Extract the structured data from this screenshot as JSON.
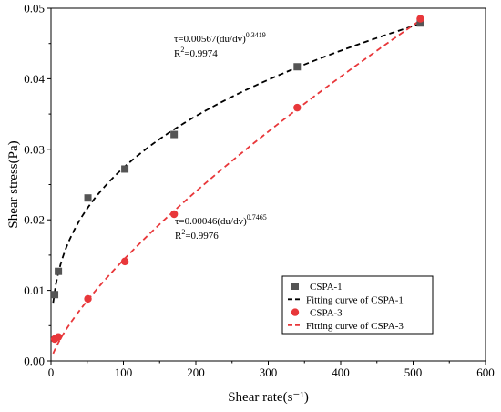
{
  "chart_data": {
    "type": "scatter",
    "title": "",
    "xlabel": "Shear rate(s⁻¹)",
    "ylabel": "Shear stress(Pa)",
    "xlim": [
      0,
      600
    ],
    "ylim": [
      0.0,
      0.05
    ],
    "xticks": [
      0,
      100,
      200,
      300,
      400,
      500,
      600
    ],
    "yticks": [
      0.0,
      0.01,
      0.02,
      0.03,
      0.04,
      0.05
    ],
    "xtick_labels": [
      "0",
      "100",
      "200",
      "300",
      "400",
      "500",
      "600"
    ],
    "ytick_labels": [
      "0.00",
      "0.01",
      "0.02",
      "0.03",
      "0.04",
      "0.05"
    ],
    "grid": false,
    "legend_position": "bottom-right",
    "series": [
      {
        "name": "CSPA-1",
        "kind": "points",
        "marker": "square",
        "color": "#555555",
        "points": [
          [
            5.1,
            0.0094
          ],
          [
            10.2,
            0.0127
          ],
          [
            51,
            0.0231
          ],
          [
            102,
            0.0272
          ],
          [
            170,
            0.0321
          ],
          [
            340,
            0.0417
          ],
          [
            510,
            0.0479
          ]
        ]
      },
      {
        "name": "Fitting curve of CSPA-1",
        "kind": "fit",
        "style": "dashed",
        "color": "#000000",
        "model": "power",
        "coefficient": 0.00567,
        "exponent": 0.3419,
        "x_range": [
          3,
          510
        ]
      },
      {
        "name": "CSPA-3",
        "kind": "points",
        "marker": "circle",
        "color": "#e8373a",
        "points": [
          [
            5.1,
            0.0031
          ],
          [
            10.2,
            0.0034
          ],
          [
            51,
            0.0088
          ],
          [
            102,
            0.0141
          ],
          [
            170,
            0.0208
          ],
          [
            340,
            0.0359
          ],
          [
            510,
            0.0485
          ]
        ]
      },
      {
        "name": "Fitting curve of CSPA-3",
        "kind": "fit",
        "style": "dashed",
        "color": "#e8373a",
        "model": "power",
        "coefficient": 0.00046,
        "exponent": 0.7465,
        "x_range": [
          3,
          510
        ]
      }
    ],
    "annotations": [
      {
        "id": "eq1",
        "prefix": "τ=0.00567(du/dv)",
        "exponent": "0.3419",
        "r2_base": "R",
        "r2_sup": "2",
        "r2_value": "=0.9974"
      },
      {
        "id": "eq3",
        "prefix": "τ=0.00046(du/dv)",
        "exponent": "0.7465",
        "r2_base": "R",
        "r2_sup": "2",
        "r2_value": "=0.9976"
      }
    ]
  }
}
